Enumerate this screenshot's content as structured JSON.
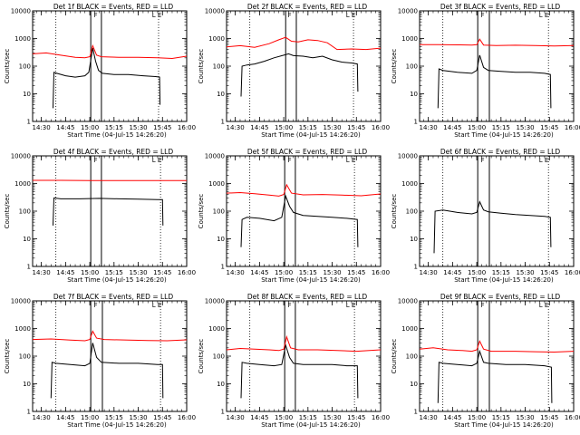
{
  "figure": {
    "xlabel": "Start Time (04-Jul-15 14:26:20)",
    "ylabel": "Counts/sec",
    "x_tick_labels": [
      "14:30",
      "14:45",
      "15:00",
      "15:15",
      "15:30",
      "15:45",
      "16:00"
    ],
    "y_tick_labels": [
      "1",
      "10",
      "100",
      "1000",
      "10000"
    ],
    "marker_labels": [
      "L",
      "F",
      "E"
    ],
    "series_colors": {
      "events": "#000000",
      "lld": "#ff0000"
    }
  },
  "chart_data": [
    {
      "type": "line",
      "title": "Det 1f BLACK = Events, RED = LLD",
      "xlabel": "Start Time (04-Jul-15 14:26:20)",
      "ylabel": "Counts/sec",
      "xlim": [
        14.41,
        16.0
      ],
      "ylim": [
        1,
        10000
      ],
      "yscale": "log",
      "x_ticks": [
        "14:30",
        "14:45",
        "15:00",
        "15:15",
        "15:30",
        "15:45",
        "16:00"
      ],
      "series": [
        {
          "color": "#000000",
          "x": [
            14.62,
            14.63,
            14.66,
            14.75,
            14.85,
            14.95,
            14.99,
            15.03,
            15.06,
            15.09,
            15.13,
            15.25,
            15.4,
            15.55,
            15.68,
            15.72,
            15.725
          ],
          "y": [
            3,
            60,
            55,
            45,
            40,
            45,
            60,
            450,
            150,
            70,
            55,
            50,
            50,
            45,
            42,
            40,
            4
          ]
        },
        {
          "color": "#ff0000",
          "x": [
            14.41,
            14.55,
            14.7,
            14.85,
            14.95,
            15.0,
            15.03,
            15.07,
            15.12,
            15.3,
            15.5,
            15.7,
            15.85,
            16.0
          ],
          "y": [
            280,
            300,
            250,
            210,
            200,
            220,
            550,
            250,
            220,
            210,
            210,
            200,
            190,
            230
          ]
        }
      ],
      "vertical_lines": {
        "dotted": [
          14.65,
          15.71
        ],
        "solid": [
          15.01,
          15.12
        ]
      }
    },
    {
      "type": "line",
      "title": "Det 2f BLACK = Events, RED = LLD",
      "xlabel": "Start Time (04-Jul-15 14:26:20)",
      "ylabel": "Counts/sec",
      "xlim": [
        14.41,
        16.0
      ],
      "ylim": [
        1,
        10000
      ],
      "yscale": "log",
      "x_ticks": [
        "14:30",
        "14:45",
        "15:00",
        "15:15",
        "15:30",
        "15:45",
        "16:00"
      ],
      "series": [
        {
          "color": "#000000",
          "x": [
            14.56,
            14.57,
            14.62,
            14.7,
            14.8,
            14.9,
            15.0,
            15.05,
            15.1,
            15.2,
            15.3,
            15.4,
            15.5,
            15.6,
            15.7,
            15.76,
            15.765
          ],
          "y": [
            8,
            100,
            110,
            120,
            150,
            200,
            250,
            280,
            240,
            230,
            200,
            230,
            170,
            140,
            130,
            120,
            12
          ]
        },
        {
          "color": "#ff0000",
          "x": [
            14.41,
            14.55,
            14.7,
            14.85,
            14.95,
            15.02,
            15.08,
            15.15,
            15.25,
            15.35,
            15.45,
            15.55,
            15.7,
            15.85,
            16.0
          ],
          "y": [
            500,
            550,
            480,
            650,
            900,
            1100,
            800,
            750,
            900,
            850,
            700,
            400,
            420,
            400,
            450
          ]
        }
      ],
      "vertical_lines": {
        "dotted": [
          14.65,
          15.72
        ],
        "solid": [
          15.02,
          15.13
        ]
      }
    },
    {
      "type": "line",
      "title": "Det 3f BLACK = Events, RED = LLD",
      "xlabel": "Start Time (04-Jul-15 14:26:20)",
      "ylabel": "Counts/sec",
      "xlim": [
        14.41,
        16.0
      ],
      "ylim": [
        1,
        10000
      ],
      "yscale": "log",
      "x_ticks": [
        "14:30",
        "14:45",
        "15:00",
        "15:15",
        "15:30",
        "15:45",
        "16:00"
      ],
      "series": [
        {
          "color": "#000000",
          "x": [
            14.6,
            14.61,
            14.65,
            14.8,
            14.95,
            15.0,
            15.03,
            15.07,
            15.12,
            15.25,
            15.4,
            15.55,
            15.7,
            15.76,
            15.765
          ],
          "y": [
            3,
            80,
            70,
            60,
            55,
            70,
            250,
            90,
            70,
            65,
            60,
            60,
            55,
            50,
            3
          ]
        },
        {
          "color": "#ff0000",
          "x": [
            14.41,
            14.6,
            14.8,
            14.95,
            15.0,
            15.03,
            15.07,
            15.2,
            15.4,
            15.6,
            15.8,
            16.0
          ],
          "y": [
            600,
            600,
            590,
            580,
            600,
            950,
            580,
            560,
            570,
            560,
            540,
            560
          ]
        }
      ],
      "vertical_lines": {
        "dotted": [
          14.65,
          15.74
        ],
        "solid": [
          15.01,
          15.13
        ]
      }
    },
    {
      "type": "line",
      "title": "Det 4f BLACK = Events, RED = LLD",
      "xlabel": "Start Time (04-Jul-15 14:26:20)",
      "ylabel": "Counts/sec",
      "xlim": [
        14.41,
        16.0
      ],
      "ylim": [
        1,
        10000
      ],
      "yscale": "log",
      "x_ticks": [
        "14:30",
        "14:45",
        "15:00",
        "15:15",
        "15:30",
        "15:45",
        "16:00"
      ],
      "series": [
        {
          "color": "#000000",
          "x": [
            14.62,
            14.63,
            14.7,
            14.9,
            15.1,
            15.3,
            15.5,
            15.7,
            15.75,
            15.755
          ],
          "y": [
            30,
            300,
            280,
            280,
            290,
            280,
            270,
            260,
            260,
            30
          ]
        },
        {
          "color": "#ff0000",
          "x": [
            14.41,
            14.7,
            15.0,
            15.3,
            15.6,
            16.0
          ],
          "y": [
            1300,
            1300,
            1280,
            1280,
            1270,
            1280
          ]
        }
      ],
      "vertical_lines": {
        "dotted": [
          14.65,
          15.73
        ],
        "solid": [
          15.01,
          15.12
        ]
      }
    },
    {
      "type": "line",
      "title": "Det 5f BLACK = Events, RED = LLD",
      "xlabel": "Start Time (04-Jul-15 14:26:20)",
      "ylabel": "Counts/sec",
      "xlim": [
        14.41,
        16.0
      ],
      "ylim": [
        1,
        10000
      ],
      "yscale": "log",
      "x_ticks": [
        "14:30",
        "14:45",
        "15:00",
        "15:15",
        "15:30",
        "15:45",
        "16:00"
      ],
      "series": [
        {
          "color": "#000000",
          "x": [
            14.56,
            14.57,
            14.62,
            14.75,
            14.9,
            14.98,
            15.02,
            15.06,
            15.1,
            15.2,
            15.35,
            15.5,
            15.65,
            15.76,
            15.765
          ],
          "y": [
            5,
            50,
            60,
            55,
            45,
            60,
            350,
            150,
            90,
            70,
            65,
            60,
            55,
            50,
            5
          ]
        },
        {
          "color": "#ff0000",
          "x": [
            14.41,
            14.55,
            14.7,
            14.85,
            14.95,
            15.0,
            15.03,
            15.08,
            15.2,
            15.4,
            15.6,
            15.8,
            16.0
          ],
          "y": [
            450,
            470,
            430,
            380,
            350,
            400,
            900,
            450,
            390,
            400,
            380,
            360,
            420
          ]
        }
      ],
      "vertical_lines": {
        "dotted": [
          14.65,
          15.73
        ],
        "solid": [
          15.01,
          15.12
        ]
      }
    },
    {
      "type": "line",
      "title": "Det 6f BLACK = Events, RED = LLD",
      "xlabel": "Start Time (04-Jul-15 14:26:20)",
      "ylabel": "Counts/sec",
      "xlim": [
        14.41,
        16.0
      ],
      "ylim": [
        1,
        10000
      ],
      "yscale": "log",
      "x_ticks": [
        "14:30",
        "14:45",
        "15:00",
        "15:15",
        "15:30",
        "15:45",
        "16:00"
      ],
      "series": [
        {
          "color": "#000000",
          "x": [
            14.56,
            14.57,
            14.65,
            14.8,
            14.95,
            15.0,
            15.03,
            15.07,
            15.12,
            15.25,
            15.4,
            15.55,
            15.7,
            15.76,
            15.765
          ],
          "y": [
            3,
            100,
            110,
            90,
            80,
            90,
            220,
            110,
            95,
            85,
            75,
            70,
            65,
            60,
            5
          ]
        }
      ],
      "vertical_lines": {
        "dotted": [
          14.65,
          15.74
        ],
        "solid": [
          15.01,
          15.13
        ]
      }
    },
    {
      "type": "line",
      "title": "Det 7f BLACK = Events, RED = LLD",
      "xlabel": "Start Time (04-Jul-15 14:26:20)",
      "ylabel": "Counts/sec",
      "xlim": [
        14.41,
        16.0
      ],
      "ylim": [
        1,
        10000
      ],
      "yscale": "log",
      "x_ticks": [
        "14:30",
        "14:45",
        "15:00",
        "15:15",
        "15:30",
        "15:45",
        "16:00"
      ],
      "series": [
        {
          "color": "#000000",
          "x": [
            14.6,
            14.61,
            14.65,
            14.8,
            14.95,
            15.0,
            15.03,
            15.07,
            15.12,
            15.3,
            15.5,
            15.7,
            15.75,
            15.755
          ],
          "y": [
            3,
            60,
            55,
            50,
            45,
            55,
            300,
            90,
            60,
            55,
            55,
            50,
            50,
            3
          ]
        },
        {
          "color": "#ff0000",
          "x": [
            14.41,
            14.6,
            14.8,
            14.95,
            15.0,
            15.03,
            15.07,
            15.15,
            15.4,
            15.6,
            15.8,
            16.0
          ],
          "y": [
            400,
            420,
            380,
            360,
            400,
            800,
            450,
            400,
            380,
            370,
            360,
            390
          ]
        }
      ],
      "vertical_lines": {
        "dotted": [
          14.65,
          15.73
        ],
        "solid": [
          15.01,
          15.13
        ]
      }
    },
    {
      "type": "line",
      "title": "Det 8f BLACK = Events, RED = LLD",
      "xlabel": "Start Time (04-Jul-15 14:26:20)",
      "ylabel": "Counts/sec",
      "xlim": [
        14.41,
        16.0
      ],
      "ylim": [
        1,
        10000
      ],
      "yscale": "log",
      "x_ticks": [
        "14:30",
        "14:45",
        "15:00",
        "15:15",
        "15:30",
        "15:45",
        "16:00"
      ],
      "series": [
        {
          "color": "#000000",
          "x": [
            14.56,
            14.57,
            14.62,
            14.75,
            14.9,
            14.98,
            15.02,
            15.06,
            15.1,
            15.2,
            15.35,
            15.5,
            15.65,
            15.76,
            15.765
          ],
          "y": [
            3,
            60,
            55,
            50,
            45,
            50,
            250,
            90,
            55,
            50,
            50,
            50,
            45,
            45,
            3
          ]
        },
        {
          "color": "#ff0000",
          "x": [
            14.41,
            14.55,
            14.7,
            14.85,
            14.95,
            15.0,
            15.03,
            15.07,
            15.15,
            15.35,
            15.55,
            15.75,
            16.0
          ],
          "y": [
            170,
            190,
            180,
            170,
            160,
            180,
            500,
            200,
            170,
            170,
            160,
            150,
            170
          ]
        }
      ],
      "vertical_lines": {
        "dotted": [
          14.65,
          15.73
        ],
        "solid": [
          15.01,
          15.12
        ]
      }
    },
    {
      "type": "line",
      "title": "Det 9f BLACK = Events, RED = LLD",
      "xlabel": "Start Time (04-Jul-15 14:26:20)",
      "ylabel": "Counts/sec",
      "xlim": [
        14.41,
        16.0
      ],
      "ylim": [
        1,
        10000
      ],
      "yscale": "log",
      "x_ticks": [
        "14:30",
        "14:45",
        "15:00",
        "15:15",
        "15:30",
        "15:45",
        "16:00"
      ],
      "series": [
        {
          "color": "#000000",
          "x": [
            14.6,
            14.61,
            14.65,
            14.8,
            14.95,
            15.0,
            15.03,
            15.07,
            15.12,
            15.3,
            15.5,
            15.7,
            15.77,
            15.775
          ],
          "y": [
            2,
            60,
            55,
            50,
            45,
            55,
            150,
            60,
            55,
            50,
            50,
            45,
            40,
            2
          ]
        },
        {
          "color": "#ff0000",
          "x": [
            14.41,
            14.55,
            14.7,
            14.85,
            14.95,
            15.0,
            15.03,
            15.07,
            15.15,
            15.4,
            15.6,
            15.8,
            16.0
          ],
          "y": [
            180,
            200,
            170,
            160,
            150,
            170,
            350,
            180,
            150,
            150,
            145,
            140,
            150
          ]
        }
      ],
      "vertical_lines": {
        "dotted": [
          14.65,
          15.74
        ],
        "solid": [
          15.01,
          15.13
        ]
      }
    }
  ]
}
